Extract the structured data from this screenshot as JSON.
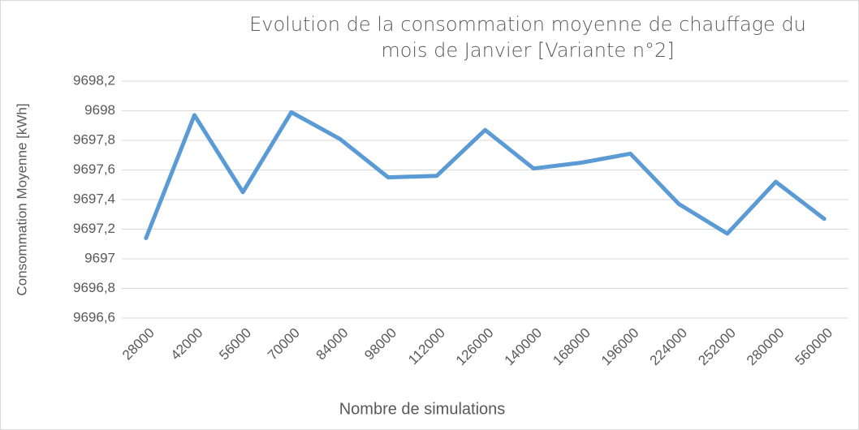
{
  "chart_data": {
    "type": "line",
    "title": "Evolution de la consommation moyenne de chauffage du mois de Janvier [Variante n°2]",
    "x_label": "Nombre de simulations",
    "y_label": "Consommation Moyenne [kWh]",
    "categories": [
      "28000",
      "42000",
      "56000",
      "70000",
      "84000",
      "98000",
      "112000",
      "126000",
      "140000",
      "168000",
      "196000",
      "224000",
      "252000",
      "280000",
      "560000"
    ],
    "series": [
      {
        "name": "Consommation moyenne",
        "color": "#5b9bd5",
        "values": [
          9697.14,
          9697.97,
          9697.45,
          9697.99,
          9697.81,
          9697.55,
          9697.56,
          9697.87,
          9697.61,
          9697.65,
          9697.71,
          9697.37,
          9697.17,
          9697.52,
          9697.27
        ]
      }
    ],
    "ylim": [
      9696.6,
      9698.2
    ],
    "yticks": [
      {
        "value": 9696.6,
        "label": "9696,6"
      },
      {
        "value": 9696.8,
        "label": "9696,8"
      },
      9697,
      {
        "value": 9697.2,
        "label": "9697,2"
      },
      {
        "value": 9697.4,
        "label": "9697,4"
      },
      {
        "value": 9697.6,
        "label": "9697,6"
      },
      {
        "value": 9697.8,
        "label": "9697,8"
      },
      9698,
      {
        "value": 9698.2,
        "label": "9698,2"
      }
    ],
    "grid": true
  }
}
